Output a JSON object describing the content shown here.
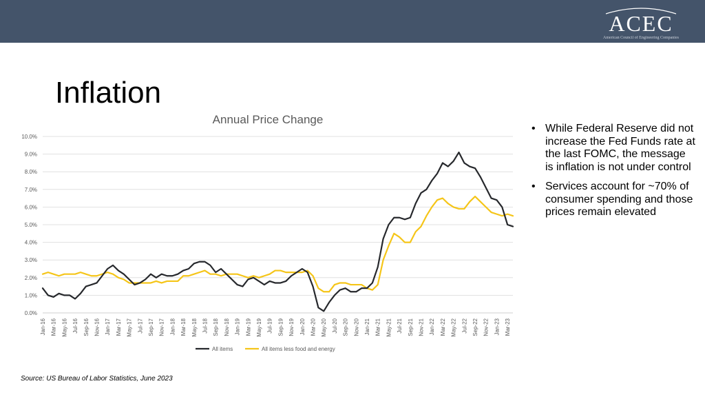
{
  "header": {
    "logo_text": "ACEC",
    "logo_subtitle": "American Council of Engineering Companies"
  },
  "slide": {
    "title": "Inflation",
    "bullets": [
      "While Federal Reserve did not increase the Fed Funds rate at the last FOMC, the message is inflation is not under control",
      "Services account for ~70% of consumer spending and those prices remain elevated"
    ],
    "source": "Source: US Bureau of Labor Statistics, June 2023"
  },
  "colors": {
    "header_bg": "#44546a",
    "series_all": "#26282c",
    "series_core": "#f5c518",
    "grid": "#d9d9d9"
  },
  "chart_data": {
    "type": "line",
    "title": "Annual Price Change",
    "xlabel": "",
    "ylabel": "",
    "ylim": [
      0,
      10
    ],
    "y_ticks": [
      "0.0%",
      "1.0%",
      "2.0%",
      "3.0%",
      "4.0%",
      "5.0%",
      "6.0%",
      "7.0%",
      "8.0%",
      "9.0%",
      "10.0%"
    ],
    "x_tick_labels": [
      "Jan-16",
      "Mar-16",
      "May-16",
      "Jul-16",
      "Sep-16",
      "Nov-16",
      "Jan-17",
      "Mar-17",
      "May-17",
      "Jul-17",
      "Sep-17",
      "Nov-17",
      "Jan-18",
      "Mar-18",
      "May-18",
      "Jul-18",
      "Sep-18",
      "Nov-18",
      "Jan-19",
      "Mar-19",
      "May-19",
      "Jul-19",
      "Sep-19",
      "Nov-19",
      "Jan-20",
      "Mar-20",
      "May-20",
      "Jul-20",
      "Sep-20",
      "Nov-20",
      "Jan-21",
      "Mar-21",
      "May-21",
      "Jul-21",
      "Sep-21",
      "Nov-21",
      "Jan-22",
      "Mar-22",
      "May-22",
      "Jul-22",
      "Sep-22",
      "Nov-22",
      "Jan-23",
      "Mar-23"
    ],
    "grid": true,
    "legend_position": "bottom",
    "series": [
      {
        "name": "All items",
        "color": "#26282c",
        "values": [
          1.4,
          1.0,
          0.9,
          1.1,
          1.0,
          1.0,
          0.8,
          1.1,
          1.5,
          1.6,
          1.7,
          2.1,
          2.5,
          2.7,
          2.4,
          2.2,
          1.9,
          1.6,
          1.7,
          1.9,
          2.2,
          2.0,
          2.2,
          2.1,
          2.1,
          2.2,
          2.4,
          2.5,
          2.8,
          2.9,
          2.9,
          2.7,
          2.3,
          2.5,
          2.2,
          1.9,
          1.6,
          1.5,
          1.9,
          2.0,
          1.8,
          1.6,
          1.8,
          1.7,
          1.7,
          1.8,
          2.1,
          2.3,
          2.5,
          2.3,
          1.5,
          0.3,
          0.1,
          0.6,
          1.0,
          1.3,
          1.4,
          1.2,
          1.2,
          1.4,
          1.4,
          1.7,
          2.6,
          4.2,
          5.0,
          5.4,
          5.4,
          5.3,
          5.4,
          6.2,
          6.8,
          7.0,
          7.5,
          7.9,
          8.5,
          8.3,
          8.6,
          9.1,
          8.5,
          8.3,
          8.2,
          7.7,
          7.1,
          6.5,
          6.4,
          6.0,
          5.0,
          4.9
        ]
      },
      {
        "name": "All items less food and energy",
        "color": "#f5c518",
        "values": [
          2.2,
          2.3,
          2.2,
          2.1,
          2.2,
          2.2,
          2.2,
          2.3,
          2.2,
          2.1,
          2.1,
          2.2,
          2.3,
          2.2,
          2.0,
          1.9,
          1.7,
          1.7,
          1.7,
          1.7,
          1.7,
          1.8,
          1.7,
          1.8,
          1.8,
          1.8,
          2.1,
          2.1,
          2.2,
          2.3,
          2.4,
          2.2,
          2.2,
          2.1,
          2.2,
          2.2,
          2.2,
          2.1,
          2.0,
          2.1,
          2.0,
          2.1,
          2.2,
          2.4,
          2.4,
          2.3,
          2.3,
          2.3,
          2.3,
          2.4,
          2.1,
          1.4,
          1.2,
          1.2,
          1.6,
          1.7,
          1.7,
          1.6,
          1.6,
          1.6,
          1.4,
          1.3,
          1.6,
          3.0,
          3.8,
          4.5,
          4.3,
          4.0,
          4.0,
          4.6,
          4.9,
          5.5,
          6.0,
          6.4,
          6.5,
          6.2,
          6.0,
          5.9,
          5.9,
          6.3,
          6.6,
          6.3,
          6.0,
          5.7,
          5.6,
          5.5,
          5.6,
          5.5
        ]
      }
    ]
  }
}
